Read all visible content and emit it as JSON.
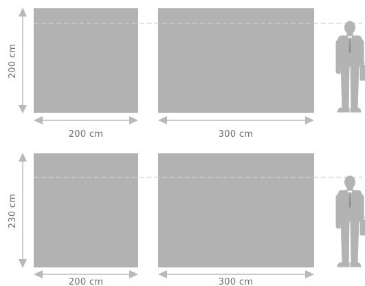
{
  "colors": {
    "panel": "#b2b2b2",
    "arrow": "#b9b9b9",
    "dashed_line": "#d0d0d0",
    "label_text": "#6f6f6f",
    "person": "#b3b3b3",
    "background": "#ffffff"
  },
  "icons": {
    "arrows": "double-headed-arrow-icon",
    "person": "businessman-silhouette-icon"
  },
  "rows": [
    {
      "height_label": "200 cm",
      "panels": [
        {
          "width_label": "200 cm"
        },
        {
          "width_label": "300 cm"
        }
      ]
    },
    {
      "height_label": "230 cm",
      "panels": [
        {
          "width_label": "200 cm"
        },
        {
          "width_label": "300 cm"
        }
      ]
    }
  ]
}
